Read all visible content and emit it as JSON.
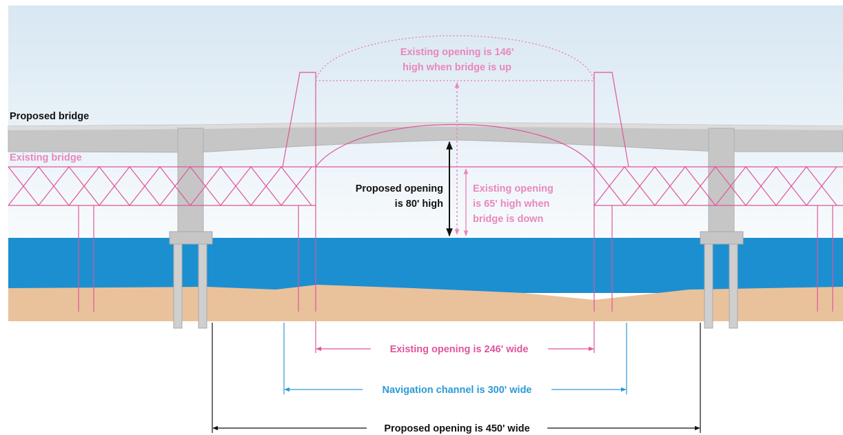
{
  "labels": {
    "proposed_bridge": "Proposed bridge",
    "existing_bridge": "Existing bridge",
    "existing_up_1": "Existing opening is 146'",
    "existing_up_2": "high when bridge is up",
    "proposed_height_1": "Proposed opening",
    "proposed_height_2": "is 80' high",
    "existing_down_1": "Existing opening",
    "existing_down_2": "is 65' high when",
    "existing_down_3": "bridge is down",
    "existing_width": "Existing opening is 246' wide",
    "nav_channel_width": "Navigation channel is 300' wide",
    "proposed_width": "Proposed opening is 450' wide"
  },
  "colors": {
    "sky_top": "#dbe9f3",
    "sky_bottom": "#f7fbfd",
    "water": "#1c8fd1",
    "ground": "#e9c29b",
    "proposed_bridge": "#c8c8c8",
    "existing_bridge": "#e0559b",
    "existing_bridge_light": "#e987bd",
    "navigation": "#2a9ad8",
    "text_dark": "#111111"
  }
}
